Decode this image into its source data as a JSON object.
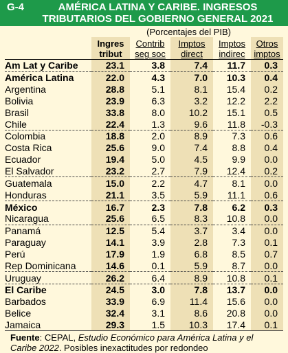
{
  "header": {
    "id": "G-4",
    "title_line1": "AMÉRICA LATINA Y CARIBE. INGRESOS",
    "title_line2": "TRIBUTARIOS DEL GOBIERNO GENERAL 2021",
    "unit": "(Porcentajes del PIB)"
  },
  "colors": {
    "header_bg": "#1e9a4a",
    "page_bg": "#fff8dc",
    "shade": "#eee0b6"
  },
  "columns": [
    {
      "line1": "Ingres",
      "line2": "tribut"
    },
    {
      "line1": "Contrib",
      "line2": "seg soc"
    },
    {
      "line1": "Imptos",
      "line2": "direct"
    },
    {
      "line1": "Imptos",
      "line2": "indirec"
    },
    {
      "line1": "Otros",
      "line2": "imptos"
    }
  ],
  "chart_data": {
    "type": "table",
    "title": "AMÉRICA LATINA Y CARIBE. INGRESOS TRIBUTARIOS DEL GOBIERNO GENERAL 2021",
    "subtitle": "(Porcentajes del PIB)",
    "columns": [
      "Ingres tribut",
      "Contrib seg soc",
      "Imptos direct",
      "Imptos indirec",
      "Otros imptos"
    ],
    "rows": [
      {
        "name": "Am Lat y Caribe",
        "values": [
          "23.1",
          "3.8",
          "7.4",
          "11.7",
          "0.3"
        ],
        "bold": true,
        "group": true
      },
      {
        "name": "América Latina",
        "values": [
          "22.0",
          "4.3",
          "7.0",
          "10.3",
          "0.4"
        ],
        "bold": true,
        "group": true
      },
      {
        "name": "Argentina",
        "values": [
          "28.8",
          "5.1",
          "8.1",
          "15.4",
          "0.2"
        ]
      },
      {
        "name": "Bolivia",
        "values": [
          "23.9",
          "6.3",
          "3.2",
          "12.2",
          "2.2"
        ]
      },
      {
        "name": "Brasil",
        "values": [
          "33.8",
          "8.0",
          "10.2",
          "15.1",
          "0.5"
        ]
      },
      {
        "name": "Chile",
        "values": [
          "22.4",
          "1.3",
          "9.6",
          "11.8",
          "-0.3"
        ]
      },
      {
        "name": "Colombia",
        "values": [
          "18.8",
          "2.0",
          "8.9",
          "7.3",
          "0.6"
        ],
        "sep": true
      },
      {
        "name": "Costa Rica",
        "values": [
          "25.6",
          "9.0",
          "7.4",
          "8.8",
          "0.4"
        ]
      },
      {
        "name": "Ecuador",
        "values": [
          "19.4",
          "5.0",
          "4.5",
          "9.9",
          "0.0"
        ]
      },
      {
        "name": "El Salvador",
        "values": [
          "23.2",
          "2.7",
          "7.9",
          "12.4",
          "0.2"
        ]
      },
      {
        "name": "Guatemala",
        "values": [
          "15.0",
          "2.2",
          "4.7",
          "8.1",
          "0.0"
        ],
        "sep": true
      },
      {
        "name": "Honduras",
        "values": [
          "21.1",
          "3.5",
          "5.9",
          "11.1",
          "0.6"
        ]
      },
      {
        "name": "México",
        "values": [
          "16.7",
          "2.3",
          "7.8",
          "6.2",
          "0.3"
        ],
        "bold": true,
        "group": true
      },
      {
        "name": "Nicaragua",
        "values": [
          "25.6",
          "6.5",
          "8.3",
          "10.8",
          "0.0"
        ]
      },
      {
        "name": "Panamá",
        "values": [
          "12.5",
          "5.4",
          "3.7",
          "3.4",
          "0.0"
        ],
        "sep": true
      },
      {
        "name": "Paraguay",
        "values": [
          "14.1",
          "3.9",
          "2.8",
          "7.3",
          "0.1"
        ]
      },
      {
        "name": "Perú",
        "values": [
          "17.9",
          "1.9",
          "6.8",
          "8.5",
          "0.7"
        ]
      },
      {
        "name": "Rep Dominicana",
        "values": [
          "14.6",
          "0.1",
          "5.9",
          "8.7",
          "0.0"
        ]
      },
      {
        "name": "Uruguay",
        "values": [
          "26.2",
          "6.4",
          "8.9",
          "10.8",
          "0.1"
        ],
        "sep": true
      },
      {
        "name": "El Caribe",
        "values": [
          "24.5",
          "3.0",
          "7.8",
          "13.7",
          "0.0"
        ],
        "bold": true,
        "group": true
      },
      {
        "name": "Barbados",
        "values": [
          "33.9",
          "6.9",
          "11.4",
          "15.6",
          "0.0"
        ]
      },
      {
        "name": "Belice",
        "values": [
          "32.4",
          "3.1",
          "8.6",
          "20.8",
          "0.0"
        ]
      },
      {
        "name": "Jamaica",
        "values": [
          "29.3",
          "1.5",
          "10.3",
          "17.4",
          "0.1"
        ]
      }
    ]
  },
  "source": {
    "label": "Fuente",
    "text1": ": CEPAL, ",
    "italic": "Estudio Económico para América Latina y el Caribe 2022",
    "text2": ". Posibles inexactitudes por redondeo"
  }
}
